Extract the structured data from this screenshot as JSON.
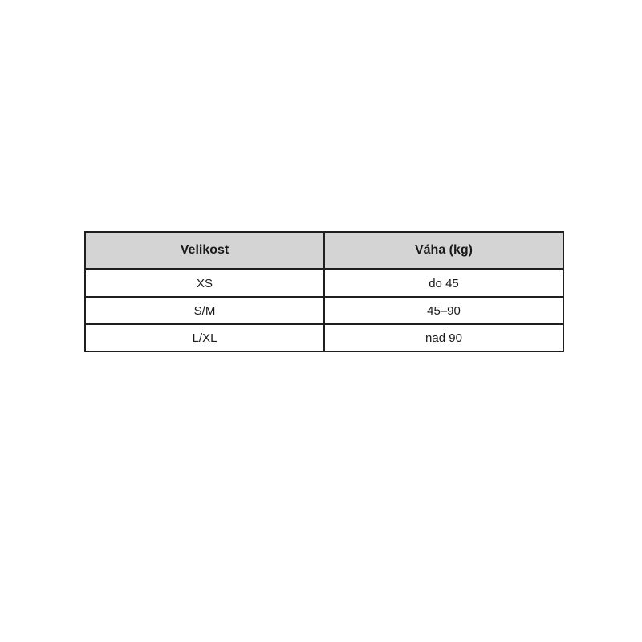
{
  "chart_data": {
    "type": "table",
    "title": "",
    "columns": [
      "Velikost",
      "Váha (kg)"
    ],
    "rows": [
      [
        "XS",
        "do 45"
      ],
      [
        "S/M",
        "45–90"
      ],
      [
        "L/XL",
        "nad 90"
      ]
    ]
  },
  "colors": {
    "header_bg": "#d4d4d4",
    "border": "#1f1f1f",
    "text": "#1a1a1a",
    "row_bg": "#ffffff",
    "page_bg": "#ffffff"
  }
}
